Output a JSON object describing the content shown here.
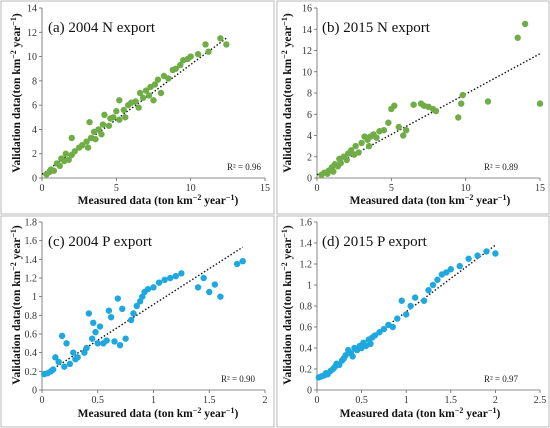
{
  "chart_data": [
    {
      "type": "scatter",
      "title": "(a) 2004 N export",
      "xlabel_parts": [
        "Measured data (ton km",
        "−2",
        " year",
        "−1",
        ")"
      ],
      "ylabel_parts": [
        "Validation data(ton km",
        "−2",
        " year",
        "−1",
        ")"
      ],
      "xlim": [
        0,
        15
      ],
      "ylim": [
        0,
        14
      ],
      "xticks": [
        0,
        5,
        10,
        15
      ],
      "yticks": [
        0,
        2,
        4,
        6,
        8,
        10,
        12,
        14
      ],
      "xtick_labels": [
        "0",
        "5",
        "10",
        "15"
      ],
      "ytick_labels": [
        "0",
        "2",
        "4",
        "6",
        "8",
        "10",
        "12",
        "14"
      ],
      "annotation": "R² = 0.96",
      "color": "#70ad47",
      "trendline": [
        [
          0,
          0.3
        ],
        [
          12.5,
          11.6
        ]
      ],
      "points": [
        [
          0.3,
          0.3
        ],
        [
          0.5,
          0.5
        ],
        [
          0.6,
          0.7
        ],
        [
          0.8,
          0.6
        ],
        [
          1.0,
          1.2
        ],
        [
          1.2,
          1.0
        ],
        [
          1.3,
          1.6
        ],
        [
          1.5,
          1.4
        ],
        [
          1.6,
          2.0
        ],
        [
          1.8,
          1.5
        ],
        [
          2.0,
          1.9
        ],
        [
          2.2,
          2.2
        ],
        [
          2.0,
          3.3
        ],
        [
          2.5,
          2.5
        ],
        [
          2.7,
          2.7
        ],
        [
          3.0,
          3.0
        ],
        [
          3.1,
          2.5
        ],
        [
          3.2,
          4.6
        ],
        [
          3.3,
          3.3
        ],
        [
          3.5,
          3.8
        ],
        [
          3.6,
          3.2
        ],
        [
          3.8,
          4.0
        ],
        [
          4.0,
          3.6
        ],
        [
          4.1,
          4.4
        ],
        [
          4.2,
          5.2
        ],
        [
          4.5,
          4.3
        ],
        [
          4.6,
          4.9
        ],
        [
          4.8,
          5.0
        ],
        [
          5.0,
          5.5
        ],
        [
          5.2,
          4.8
        ],
        [
          5.2,
          6.4
        ],
        [
          5.5,
          5.6
        ],
        [
          5.6,
          5.0
        ],
        [
          5.8,
          6.0
        ],
        [
          6.0,
          6.2
        ],
        [
          6.3,
          6.3
        ],
        [
          6.5,
          5.8
        ],
        [
          6.6,
          7.0
        ],
        [
          6.8,
          6.6
        ],
        [
          7.0,
          7.2
        ],
        [
          7.2,
          6.8
        ],
        [
          7.3,
          7.5
        ],
        [
          7.5,
          6.4
        ],
        [
          7.6,
          7.7
        ],
        [
          7.8,
          8.1
        ],
        [
          8.0,
          7.0
        ],
        [
          8.2,
          8.4
        ],
        [
          8.5,
          8.2
        ],
        [
          8.8,
          8.9
        ],
        [
          9.0,
          9.0
        ],
        [
          9.3,
          9.3
        ],
        [
          9.5,
          9.7
        ],
        [
          9.8,
          9.8
        ],
        [
          10.0,
          10.0
        ],
        [
          10.5,
          10.2
        ],
        [
          11.0,
          11.0
        ],
        [
          11.2,
          10.4
        ],
        [
          12.0,
          11.5
        ],
        [
          12.4,
          11.0
        ]
      ]
    },
    {
      "type": "scatter",
      "title": "(b) 2015 N export",
      "xlabel_parts": [
        "Measured data (ton km",
        "−2",
        " year",
        "−1",
        ")"
      ],
      "ylabel_parts": [
        "Validation data(ton km",
        "−2",
        " year",
        "−1",
        ")"
      ],
      "xlim": [
        0,
        15
      ],
      "ylim": [
        0,
        16
      ],
      "xticks": [
        0,
        5,
        10,
        15
      ],
      "yticks": [
        0,
        2,
        4,
        6,
        8,
        10,
        12,
        14,
        16
      ],
      "xtick_labels": [
        "0",
        "5",
        "10",
        "15"
      ],
      "ytick_labels": [
        "0",
        "2",
        "4",
        "6",
        "8",
        "10",
        "12",
        "14",
        "16"
      ],
      "annotation": "R² = 0.89",
      "color": "#70ad47",
      "trendline": [
        [
          0,
          0.3
        ],
        [
          15,
          11.7
        ]
      ],
      "points": [
        [
          0.3,
          0.3
        ],
        [
          0.5,
          0.5
        ],
        [
          0.7,
          0.4
        ],
        [
          0.8,
          0.7
        ],
        [
          1.0,
          1.0
        ],
        [
          1.1,
          0.6
        ],
        [
          1.2,
          1.3
        ],
        [
          1.4,
          1.1
        ],
        [
          1.5,
          1.8
        ],
        [
          1.6,
          1.4
        ],
        [
          1.8,
          2.0
        ],
        [
          2.0,
          1.7
        ],
        [
          2.1,
          2.3
        ],
        [
          2.3,
          2.6
        ],
        [
          2.5,
          2.2
        ],
        [
          2.6,
          3.0
        ],
        [
          2.8,
          2.4
        ],
        [
          3.0,
          3.3
        ],
        [
          3.2,
          3.9
        ],
        [
          3.4,
          3.6
        ],
        [
          3.5,
          3.0
        ],
        [
          3.6,
          3.9
        ],
        [
          3.8,
          4.1
        ],
        [
          4.0,
          3.8
        ],
        [
          4.2,
          4.4
        ],
        [
          4.5,
          4.5
        ],
        [
          4.8,
          5.2
        ],
        [
          5.0,
          6.5
        ],
        [
          5.2,
          6.8
        ],
        [
          5.5,
          4.8
        ],
        [
          5.8,
          4.0
        ],
        [
          6.0,
          4.5
        ],
        [
          6.5,
          6.9
        ],
        [
          7.0,
          7.0
        ],
        [
          7.2,
          6.8
        ],
        [
          7.5,
          6.7
        ],
        [
          7.8,
          6.5
        ],
        [
          8.0,
          6.3
        ],
        [
          9.5,
          5.7
        ],
        [
          9.7,
          7.0
        ],
        [
          9.8,
          7.8
        ],
        [
          11.5,
          7.2
        ],
        [
          13.5,
          13.2
        ],
        [
          14.0,
          14.5
        ],
        [
          15.0,
          7.0
        ]
      ]
    },
    {
      "type": "scatter",
      "title": "(c) 2004 P export",
      "xlabel_parts": [
        "Measured data (ton km",
        "−2",
        " year",
        "−1",
        ")"
      ],
      "ylabel_parts": [
        "Validation data(ton km",
        "−2",
        " year",
        "−1",
        ")"
      ],
      "xlim": [
        0,
        2
      ],
      "ylim": [
        0,
        1.8
      ],
      "xticks": [
        0,
        0.5,
        1,
        1.5,
        2
      ],
      "yticks": [
        0,
        0.2,
        0.4,
        0.6,
        0.8,
        1.0,
        1.2,
        1.4,
        1.6,
        1.8
      ],
      "xtick_labels": [
        "0",
        "0.5",
        "1",
        "1.5",
        "2"
      ],
      "ytick_labels": [
        "0",
        "0.2",
        "0.4",
        "0.6",
        "0.8",
        "1",
        "1.2",
        "1.4",
        "1.6",
        "1.8"
      ],
      "annotation": "R² = 0.90",
      "color": "#1fa7df",
      "trendline": [
        [
          0,
          0.15
        ],
        [
          1.8,
          1.53
        ]
      ],
      "points": [
        [
          0.02,
          0.17
        ],
        [
          0.05,
          0.18
        ],
        [
          0.08,
          0.2
        ],
        [
          0.1,
          0.22
        ],
        [
          0.12,
          0.35
        ],
        [
          0.15,
          0.3
        ],
        [
          0.18,
          0.58
        ],
        [
          0.2,
          0.25
        ],
        [
          0.22,
          0.5
        ],
        [
          0.25,
          0.28
        ],
        [
          0.28,
          0.4
        ],
        [
          0.3,
          0.33
        ],
        [
          0.32,
          0.35
        ],
        [
          0.38,
          0.4
        ],
        [
          0.4,
          0.45
        ],
        [
          0.42,
          0.82
        ],
        [
          0.45,
          0.55
        ],
        [
          0.46,
          0.72
        ],
        [
          0.48,
          0.62
        ],
        [
          0.5,
          0.5
        ],
        [
          0.52,
          0.68
        ],
        [
          0.55,
          0.5
        ],
        [
          0.58,
          0.53
        ],
        [
          0.6,
          0.85
        ],
        [
          0.62,
          0.78
        ],
        [
          0.65,
          0.52
        ],
        [
          0.68,
          0.98
        ],
        [
          0.7,
          0.48
        ],
        [
          0.72,
          0.87
        ],
        [
          0.75,
          0.55
        ],
        [
          0.8,
          0.75
        ],
        [
          0.82,
          0.82
        ],
        [
          0.85,
          0.9
        ],
        [
          0.88,
          0.95
        ],
        [
          0.9,
          1.0
        ],
        [
          0.92,
          1.05
        ],
        [
          0.95,
          1.08
        ],
        [
          1.0,
          1.1
        ],
        [
          1.05,
          1.15
        ],
        [
          1.1,
          1.18
        ],
        [
          1.15,
          1.2
        ],
        [
          1.2,
          1.22
        ],
        [
          1.25,
          1.25
        ],
        [
          1.4,
          1.1
        ],
        [
          1.45,
          1.2
        ],
        [
          1.5,
          1.05
        ],
        [
          1.55,
          1.13
        ],
        [
          1.6,
          1.0
        ],
        [
          1.75,
          1.35
        ],
        [
          1.8,
          1.38
        ]
      ]
    },
    {
      "type": "scatter",
      "title": "(d) 2015 P export",
      "xlabel_parts": [
        "Measured data (ton km",
        "−2",
        " year",
        "−1",
        ")"
      ],
      "ylabel_parts": [
        "Validation data(ton km",
        "−2",
        " year",
        "−1",
        ")"
      ],
      "xlim": [
        0,
        2.5
      ],
      "ylim": [
        0,
        1.6
      ],
      "xticks": [
        0,
        0.5,
        1,
        1.5,
        2,
        2.5
      ],
      "yticks": [
        0,
        0.2,
        0.4,
        0.6,
        0.8,
        1.0,
        1.2,
        1.4,
        1.6
      ],
      "xtick_labels": [
        "0",
        "0.5",
        "1",
        "1.5",
        "2",
        "2.5"
      ],
      "ytick_labels": [
        "0",
        "0.2",
        "0.4",
        "0.6",
        "0.8",
        "1",
        "1.2",
        "1.4",
        "1.6"
      ],
      "annotation": "R² = 0.97",
      "color": "#1fa7df",
      "trendline": [
        [
          0,
          0.11
        ],
        [
          2.0,
          1.38
        ]
      ],
      "points": [
        [
          0.02,
          0.12
        ],
        [
          0.05,
          0.13
        ],
        [
          0.08,
          0.14
        ],
        [
          0.1,
          0.16
        ],
        [
          0.12,
          0.15
        ],
        [
          0.15,
          0.18
        ],
        [
          0.18,
          0.2
        ],
        [
          0.2,
          0.22
        ],
        [
          0.22,
          0.25
        ],
        [
          0.25,
          0.24
        ],
        [
          0.28,
          0.28
        ],
        [
          0.3,
          0.3
        ],
        [
          0.32,
          0.33
        ],
        [
          0.35,
          0.38
        ],
        [
          0.38,
          0.35
        ],
        [
          0.4,
          0.32
        ],
        [
          0.42,
          0.4
        ],
        [
          0.45,
          0.38
        ],
        [
          0.48,
          0.42
        ],
        [
          0.5,
          0.4
        ],
        [
          0.52,
          0.45
        ],
        [
          0.55,
          0.42
        ],
        [
          0.58,
          0.48
        ],
        [
          0.6,
          0.44
        ],
        [
          0.62,
          0.5
        ],
        [
          0.65,
          0.52
        ],
        [
          0.7,
          0.55
        ],
        [
          0.75,
          0.58
        ],
        [
          0.8,
          0.62
        ],
        [
          0.85,
          0.6
        ],
        [
          0.9,
          0.68
        ],
        [
          0.95,
          0.85
        ],
        [
          1.0,
          0.72
        ],
        [
          1.05,
          0.8
        ],
        [
          1.1,
          0.88
        ],
        [
          1.2,
          0.85
        ],
        [
          1.25,
          0.95
        ],
        [
          1.3,
          1.0
        ],
        [
          1.35,
          1.05
        ],
        [
          1.4,
          1.1
        ],
        [
          1.45,
          1.12
        ],
        [
          1.5,
          1.15
        ],
        [
          1.6,
          1.18
        ],
        [
          1.7,
          1.25
        ],
        [
          1.8,
          1.28
        ],
        [
          1.9,
          1.32
        ],
        [
          2.0,
          1.3
        ]
      ]
    }
  ]
}
